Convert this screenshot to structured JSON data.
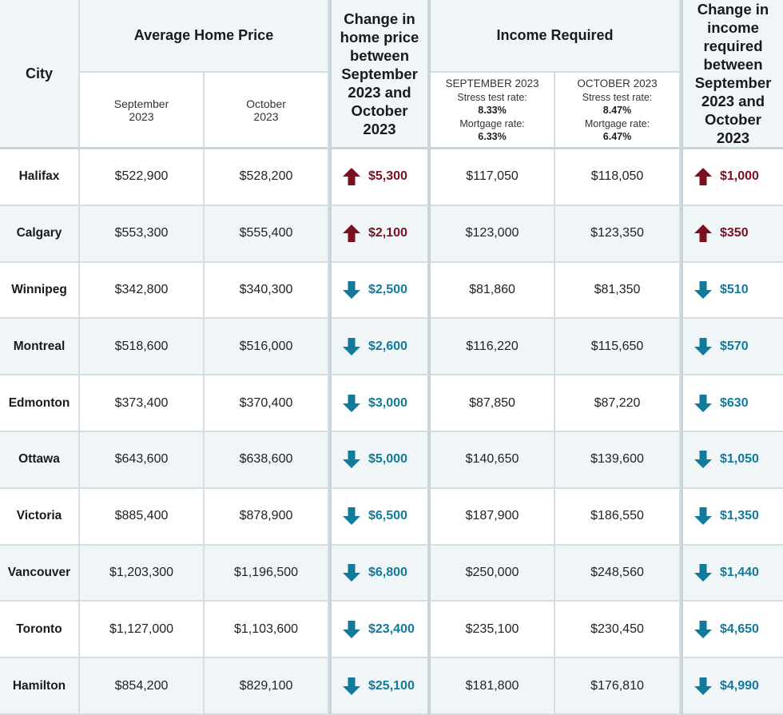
{
  "header": {
    "city": "City",
    "avg_price": "Average Home Price",
    "sep": "September 2023",
    "oct": "October 2023",
    "price_change": "Change in home price between September 2023 and October 2023",
    "income_required": "Income Required",
    "income_change": "Change in income required between September 2023 and October 2023",
    "inc_sep": {
      "label": "SEPTEMBER 2023",
      "stress_label": "Stress test rate:",
      "stress_value": "8.33%",
      "mortgage_label": "Mortgage rate:",
      "mortgage_value": "6.33%"
    },
    "inc_oct": {
      "label": "OCTOBER 2023",
      "stress_label": "Stress test rate:",
      "stress_value": "8.47%",
      "mortgage_label": "Mortgage rate:",
      "mortgage_value": "6.47%"
    }
  },
  "colors": {
    "up": "#7a1020",
    "down": "#127a9a",
    "alt_row": "#f0f6f8",
    "grid": "#d3dde3"
  },
  "rows": [
    {
      "city": "Halifax",
      "price_sep": "$522,900",
      "price_oct": "$528,200",
      "price_dir": "up",
      "price_change": "$5,300",
      "inc_sep": "$117,050",
      "inc_oct": "$118,050",
      "inc_dir": "up",
      "inc_change": "$1,000"
    },
    {
      "city": "Calgary",
      "price_sep": "$553,300",
      "price_oct": "$555,400",
      "price_dir": "up",
      "price_change": "$2,100",
      "inc_sep": "$123,000",
      "inc_oct": "$123,350",
      "inc_dir": "up",
      "inc_change": "$350"
    },
    {
      "city": "Winnipeg",
      "price_sep": "$342,800",
      "price_oct": "$340,300",
      "price_dir": "down",
      "price_change": "$2,500",
      "inc_sep": "$81,860",
      "inc_oct": "$81,350",
      "inc_dir": "down",
      "inc_change": "$510"
    },
    {
      "city": "Montreal",
      "price_sep": "$518,600",
      "price_oct": "$516,000",
      "price_dir": "down",
      "price_change": "$2,600",
      "inc_sep": "$116,220",
      "inc_oct": "$115,650",
      "inc_dir": "down",
      "inc_change": "$570"
    },
    {
      "city": "Edmonton",
      "price_sep": "$373,400",
      "price_oct": "$370,400",
      "price_dir": "down",
      "price_change": "$3,000",
      "inc_sep": "$87,850",
      "inc_oct": "$87,220",
      "inc_dir": "down",
      "inc_change": "$630"
    },
    {
      "city": "Ottawa",
      "price_sep": "$643,600",
      "price_oct": "$638,600",
      "price_dir": "down",
      "price_change": "$5,000",
      "inc_sep": "$140,650",
      "inc_oct": "$139,600",
      "inc_dir": "down",
      "inc_change": "$1,050"
    },
    {
      "city": "Victoria",
      "price_sep": "$885,400",
      "price_oct": "$878,900",
      "price_dir": "down",
      "price_change": "$6,500",
      "inc_sep": "$187,900",
      "inc_oct": "$186,550",
      "inc_dir": "down",
      "inc_change": "$1,350"
    },
    {
      "city": "Vancouver",
      "price_sep": "$1,203,300",
      "price_oct": "$1,196,500",
      "price_dir": "down",
      "price_change": "$6,800",
      "inc_sep": "$250,000",
      "inc_oct": "$248,560",
      "inc_dir": "down",
      "inc_change": "$1,440"
    },
    {
      "city": "Toronto",
      "price_sep": "$1,127,000",
      "price_oct": "$1,103,600",
      "price_dir": "down",
      "price_change": "$23,400",
      "inc_sep": "$235,100",
      "inc_oct": "$230,450",
      "inc_dir": "down",
      "inc_change": "$4,650"
    },
    {
      "city": "Hamilton",
      "price_sep": "$854,200",
      "price_oct": "$829,100",
      "price_dir": "down",
      "price_change": "$25,100",
      "inc_sep": "$181,800",
      "inc_oct": "$176,810",
      "inc_dir": "down",
      "inc_change": "$4,990"
    }
  ]
}
